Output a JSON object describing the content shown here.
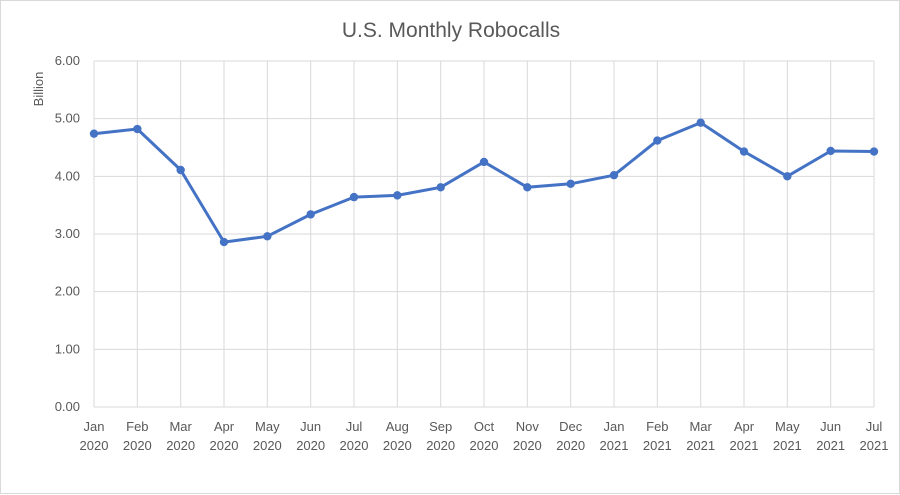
{
  "chart_data": {
    "type": "line",
    "title": "U.S. Monthly Robocalls",
    "xlabel": "",
    "ylabel": "Billion",
    "ylim": [
      0,
      6
    ],
    "yticks": [
      "0.00",
      "1.00",
      "2.00",
      "3.00",
      "4.00",
      "5.00",
      "6.00"
    ],
    "grid": true,
    "legend": "none",
    "categories": [
      [
        "Jan",
        "2020"
      ],
      [
        "Feb",
        "2020"
      ],
      [
        "Mar",
        "2020"
      ],
      [
        "Apr",
        "2020"
      ],
      [
        "May",
        "2020"
      ],
      [
        "Jun",
        "2020"
      ],
      [
        "Jul",
        "2020"
      ],
      [
        "Aug",
        "2020"
      ],
      [
        "Sep",
        "2020"
      ],
      [
        "Oct",
        "2020"
      ],
      [
        "Nov",
        "2020"
      ],
      [
        "Dec",
        "2020"
      ],
      [
        "Jan",
        "2021"
      ],
      [
        "Feb",
        "2021"
      ],
      [
        "Mar",
        "2021"
      ],
      [
        "Apr",
        "2021"
      ],
      [
        "May",
        "2021"
      ],
      [
        "Jun",
        "2021"
      ],
      [
        "Jul",
        "2021"
      ]
    ],
    "series": [
      {
        "values": [
          4.74,
          4.82,
          4.11,
          2.86,
          2.96,
          3.34,
          3.64,
          3.67,
          3.81,
          4.25,
          3.81,
          3.87,
          4.02,
          4.62,
          4.93,
          4.43,
          4.0,
          4.44,
          4.43
        ],
        "color": "#4472c4"
      }
    ]
  }
}
